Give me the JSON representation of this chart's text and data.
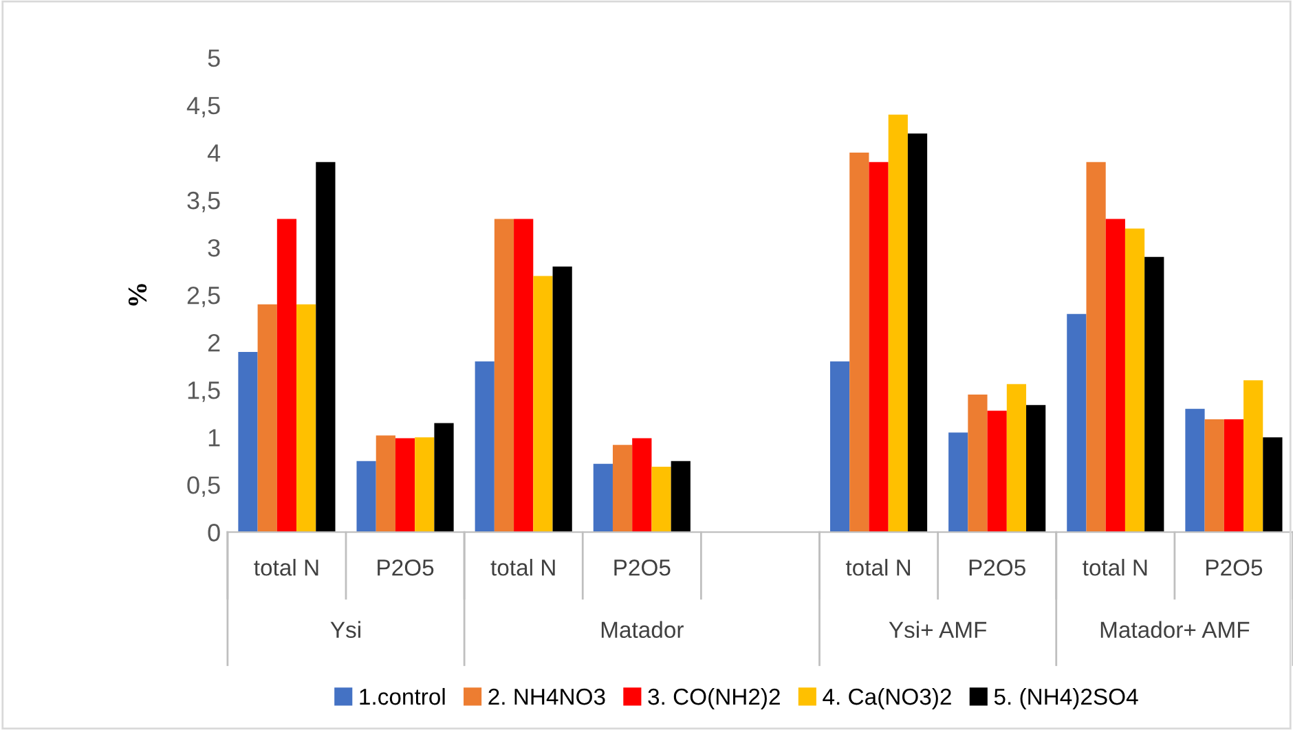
{
  "chart_data": {
    "type": "bar",
    "ylabel": "%",
    "categories": [
      "total N",
      "P2O5",
      "total N",
      "P2O5",
      null,
      "total N",
      "P2O5",
      "total N",
      "P2O5"
    ],
    "annotations": [
      "Ysi",
      "Matador",
      "Ysi+ AMF",
      "Matador+ AMF"
    ],
    "series": [
      {
        "name": "1.control",
        "color": "#4472c4",
        "values": [
          1.9,
          0.75,
          1.8,
          0.72,
          null,
          1.8,
          1.05,
          2.3,
          1.3
        ]
      },
      {
        "name": "2. NH4NO3",
        "color": "#ed7d31",
        "values": [
          2.4,
          1.02,
          3.3,
          0.92,
          null,
          4.0,
          1.45,
          3.9,
          1.19
        ]
      },
      {
        "name": "3. CO(NH2)2",
        "color": "#ff0000",
        "values": [
          3.3,
          0.99,
          3.3,
          0.99,
          null,
          3.9,
          1.28,
          3.3,
          1.19
        ]
      },
      {
        "name": "4. Ca(NO3)2",
        "color": "#ffc000",
        "values": [
          2.4,
          1.0,
          2.7,
          0.69,
          null,
          4.4,
          1.56,
          3.2,
          1.6
        ]
      },
      {
        "name": "5. (NH4)2SO4",
        "color": "#000000",
        "values": [
          3.9,
          1.15,
          2.8,
          0.75,
          null,
          4.2,
          1.34,
          2.9,
          1.0
        ]
      }
    ],
    "ylim": [
      0,
      5
    ],
    "yticks": [
      0,
      {
        "value": 0.5,
        "label": "0,5"
      },
      1,
      {
        "value": 1.5,
        "label": "1,5"
      },
      2,
      {
        "value": 2.5,
        "label": "2,5"
      },
      3,
      {
        "value": 3.5,
        "label": "3,5"
      },
      4,
      {
        "value": 4.5,
        "label": "4,5"
      },
      5
    ],
    "grid": false,
    "legend": "bottom"
  }
}
